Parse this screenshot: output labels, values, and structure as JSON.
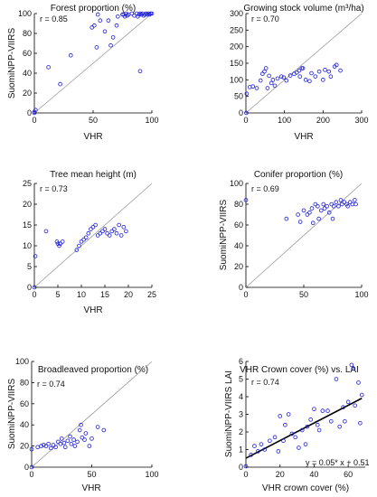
{
  "chart_data": [
    {
      "type": "scatter",
      "title": "Forest proportion (%)",
      "xlabel": "VHR",
      "ylabel": "SuomiNPP-VIIRS",
      "annotation": "r = 0.85",
      "xlim": [
        0,
        100
      ],
      "ylim": [
        0,
        100
      ],
      "xticks": [
        "0",
        "50",
        "100"
      ],
      "yticks": [
        "0",
        "20",
        "40",
        "60",
        "80",
        "100"
      ],
      "identity_line": true,
      "points": [
        [
          0,
          0
        ],
        [
          1,
          3
        ],
        [
          0,
          1
        ],
        [
          12,
          46
        ],
        [
          22,
          29
        ],
        [
          31,
          58
        ],
        [
          49,
          86
        ],
        [
          51,
          88
        ],
        [
          53,
          66
        ],
        [
          54,
          99
        ],
        [
          56,
          93
        ],
        [
          60,
          82
        ],
        [
          63,
          93
        ],
        [
          65,
          68
        ],
        [
          67,
          76
        ],
        [
          70,
          88
        ],
        [
          71,
          97
        ],
        [
          75,
          99
        ],
        [
          76,
          99
        ],
        [
          77,
          97
        ],
        [
          78,
          100
        ],
        [
          79,
          98
        ],
        [
          80,
          99
        ],
        [
          83,
          100
        ],
        [
          85,
          98
        ],
        [
          87,
          100
        ],
        [
          88,
          97
        ],
        [
          89,
          99
        ],
        [
          90,
          100
        ],
        [
          91,
          99
        ],
        [
          92,
          100
        ],
        [
          93,
          98
        ],
        [
          94,
          99
        ],
        [
          95,
          100
        ],
        [
          96,
          99
        ],
        [
          97,
          100
        ],
        [
          98,
          99
        ],
        [
          99,
          100
        ],
        [
          100,
          100
        ],
        [
          90,
          42
        ]
      ]
    },
    {
      "type": "scatter",
      "title": "Growing stock volume (m³/ha)",
      "xlabel": "VHR",
      "ylabel": "",
      "annotation": "r = 0.70",
      "xlim": [
        0,
        300
      ],
      "ylim": [
        0,
        300
      ],
      "xticks": [
        "0",
        "100",
        "200",
        "300"
      ],
      "yticks": [
        "0",
        "50",
        "100",
        "150",
        "200",
        "250",
        "300"
      ],
      "identity_line": true,
      "points": [
        [
          1,
          0
        ],
        [
          2,
          58
        ],
        [
          10,
          78
        ],
        [
          18,
          80
        ],
        [
          28,
          75
        ],
        [
          38,
          98
        ],
        [
          43,
          118
        ],
        [
          48,
          125
        ],
        [
          52,
          135
        ],
        [
          56,
          75
        ],
        [
          60,
          112
        ],
        [
          66,
          90
        ],
        [
          70,
          100
        ],
        [
          75,
          82
        ],
        [
          82,
          104
        ],
        [
          92,
          110
        ],
        [
          98,
          107
        ],
        [
          105,
          98
        ],
        [
          115,
          113
        ],
        [
          125,
          118
        ],
        [
          132,
          122
        ],
        [
          138,
          128
        ],
        [
          140,
          110
        ],
        [
          145,
          135
        ],
        [
          148,
          135
        ],
        [
          155,
          100
        ],
        [
          165,
          96
        ],
        [
          170,
          120
        ],
        [
          180,
          110
        ],
        [
          190,
          125
        ],
        [
          200,
          100
        ],
        [
          205,
          130
        ],
        [
          215,
          125
        ],
        [
          220,
          110
        ],
        [
          230,
          140
        ],
        [
          235,
          145
        ],
        [
          245,
          128
        ]
      ]
    },
    {
      "type": "scatter",
      "title": "Tree mean height (m)",
      "xlabel": "VHR",
      "ylabel": "",
      "annotation": "r = 0.73",
      "xlim": [
        0,
        25
      ],
      "ylim": [
        0,
        25
      ],
      "xticks": [
        "0",
        "5",
        "10",
        "15",
        "20",
        "25"
      ],
      "yticks": [
        "0",
        "5",
        "10",
        "15",
        "20",
        "25"
      ],
      "identity_line": true,
      "points": [
        [
          0,
          0
        ],
        [
          0.2,
          7.5
        ],
        [
          2.5,
          13.5
        ],
        [
          4.8,
          11
        ],
        [
          5,
          10.5
        ],
        [
          5.3,
          10
        ],
        [
          5.5,
          10.5
        ],
        [
          6,
          11
        ],
        [
          9,
          9
        ],
        [
          9.5,
          10
        ],
        [
          10,
          11
        ],
        [
          10.5,
          11.5
        ],
        [
          11,
          12
        ],
        [
          11.5,
          13
        ],
        [
          12,
          14
        ],
        [
          12.5,
          14.5
        ],
        [
          13,
          15
        ],
        [
          13.5,
          12.5
        ],
        [
          14,
          13
        ],
        [
          14.5,
          13.5
        ],
        [
          15,
          14
        ],
        [
          15.5,
          13
        ],
        [
          16,
          12.5
        ],
        [
          16.5,
          13.5
        ],
        [
          17,
          14
        ],
        [
          17.5,
          13
        ],
        [
          18,
          15
        ],
        [
          18.5,
          12.5
        ],
        [
          19,
          14.5
        ],
        [
          19.5,
          13.5
        ]
      ]
    },
    {
      "type": "scatter",
      "title": "Conifer proportion (%)",
      "xlabel": "",
      "ylabel": "SuomiNPP-VIIRS",
      "annotation": "r = 0.69",
      "xlim": [
        0,
        100
      ],
      "ylim": [
        0,
        100
      ],
      "xticks": [
        "0",
        "50",
        "100"
      ],
      "yticks": [
        "0",
        "20",
        "40",
        "60",
        "80",
        "100"
      ],
      "identity_line": true,
      "points": [
        [
          0,
          84
        ],
        [
          35,
          66
        ],
        [
          45,
          70
        ],
        [
          47,
          63
        ],
        [
          50,
          74
        ],
        [
          53,
          70
        ],
        [
          55,
          72
        ],
        [
          57,
          76
        ],
        [
          58,
          62
        ],
        [
          60,
          80
        ],
        [
          62,
          78
        ],
        [
          63,
          66
        ],
        [
          65,
          74
        ],
        [
          67,
          80
        ],
        [
          68,
          76
        ],
        [
          70,
          78
        ],
        [
          72,
          72
        ],
        [
          74,
          80
        ],
        [
          75,
          66
        ],
        [
          76,
          78
        ],
        [
          78,
          82
        ],
        [
          80,
          78
        ],
        [
          82,
          84
        ],
        [
          83,
          80
        ],
        [
          85,
          82
        ],
        [
          87,
          80
        ],
        [
          88,
          78
        ],
        [
          90,
          82
        ],
        [
          92,
          80
        ],
        [
          94,
          84
        ],
        [
          95,
          80
        ]
      ]
    },
    {
      "type": "scatter",
      "title": "Broadleaved proportion (%)",
      "xlabel": "VHR",
      "ylabel": "SuomiNPP-VIIRS",
      "annotation": "r = 0.74",
      "xlim": [
        0,
        100
      ],
      "ylim": [
        0,
        100
      ],
      "xticks": [
        "0",
        "50",
        "100"
      ],
      "yticks": [
        "0",
        "20",
        "40",
        "60",
        "80",
        "100"
      ],
      "identity_line": true,
      "points": [
        [
          0,
          0
        ],
        [
          0,
          17
        ],
        [
          5,
          19
        ],
        [
          8,
          20
        ],
        [
          10,
          21
        ],
        [
          12,
          20
        ],
        [
          14,
          22
        ],
        [
          16,
          18
        ],
        [
          18,
          21
        ],
        [
          20,
          19
        ],
        [
          22,
          24
        ],
        [
          24,
          22
        ],
        [
          25,
          27
        ],
        [
          27,
          23
        ],
        [
          28,
          19
        ],
        [
          30,
          25
        ],
        [
          32,
          29
        ],
        [
          33,
          22
        ],
        [
          35,
          26
        ],
        [
          36,
          20
        ],
        [
          38,
          24
        ],
        [
          40,
          35
        ],
        [
          41,
          40
        ],
        [
          42,
          28
        ],
        [
          44,
          26
        ],
        [
          45,
          32
        ],
        [
          48,
          20
        ],
        [
          50,
          27
        ],
        [
          55,
          38
        ],
        [
          60,
          35
        ]
      ]
    },
    {
      "type": "scatter",
      "title": "VHR Crown cover (%) vs. LAI",
      "xlabel": "VHR crown cover (%)",
      "ylabel": "SuomiNPP-VIIRS LAI",
      "annotation": "r = 0.74",
      "regression_label": "y = 0.05* x + 0.51",
      "fit": {
        "slope": 0.05,
        "intercept": 0.51
      },
      "xlim": [
        0,
        70
      ],
      "ylim": [
        0,
        6
      ],
      "xticks": [
        "0",
        "20",
        "40",
        "60"
      ],
      "yticks": [
        "0",
        "1",
        "2",
        "3",
        "4",
        "5",
        "6"
      ],
      "identity_line": false,
      "points": [
        [
          0,
          0.05
        ],
        [
          3,
          0.7
        ],
        [
          5,
          1.2
        ],
        [
          7,
          0.9
        ],
        [
          9,
          1.3
        ],
        [
          11,
          1
        ],
        [
          14,
          1.5
        ],
        [
          17,
          1.7
        ],
        [
          19,
          0.9
        ],
        [
          20,
          2.9
        ],
        [
          22,
          1.5
        ],
        [
          23,
          2.4
        ],
        [
          25,
          3
        ],
        [
          27,
          1.9
        ],
        [
          29,
          1.7
        ],
        [
          31,
          1.1
        ],
        [
          33,
          2.1
        ],
        [
          35,
          1.3
        ],
        [
          36,
          2.3
        ],
        [
          38,
          2.7
        ],
        [
          40,
          3.3
        ],
        [
          42,
          2.4
        ],
        [
          43,
          2.1
        ],
        [
          45,
          3.2
        ],
        [
          48,
          3.2
        ],
        [
          50,
          2.6
        ],
        [
          53,
          5
        ],
        [
          55,
          2.3
        ],
        [
          57,
          3.4
        ],
        [
          58,
          2.6
        ],
        [
          60,
          3.7
        ],
        [
          62,
          5.8
        ],
        [
          63,
          5.6
        ],
        [
          64,
          3.5
        ],
        [
          66,
          4.8
        ],
        [
          67,
          2.5
        ],
        [
          68,
          4.1
        ]
      ]
    }
  ]
}
